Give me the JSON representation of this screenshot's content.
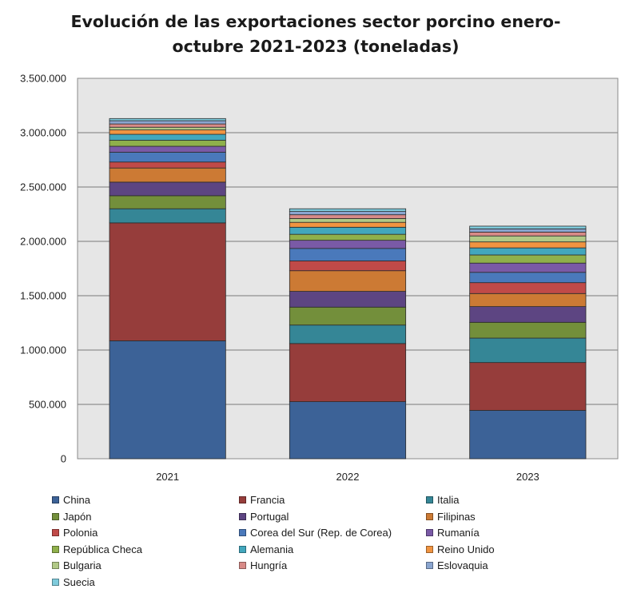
{
  "chart_data": {
    "type": "bar",
    "stacked": true,
    "title_lines": [
      "Evolución de las exportaciones sector porcino enero-",
      "octubre  2021-2023 (toneladas)"
    ],
    "categories": [
      "2021",
      "2022",
      "2023"
    ],
    "ylim": [
      0,
      3500000
    ],
    "yticks": [
      0,
      500000,
      1000000,
      1500000,
      2000000,
      2500000,
      3000000,
      3500000
    ],
    "ytick_labels": [
      "0",
      "500.000",
      "1.000.000",
      "1.500.000",
      "2.000.000",
      "2.500.000",
      "3.000.000",
      "3.500.000"
    ],
    "grid": true,
    "legend_position": "bottom",
    "series": [
      {
        "name": "China",
        "color": "#3c6297",
        "values": [
          1085000,
          525000,
          445000
        ]
      },
      {
        "name": "Francia",
        "color": "#963d3b",
        "values": [
          1085000,
          535000,
          440000
        ]
      },
      {
        "name": "Italia",
        "color": "#358696",
        "values": [
          130000,
          170000,
          225000
        ]
      },
      {
        "name": "Japón",
        "color": "#738f3b",
        "values": [
          120000,
          165000,
          145000
        ]
      },
      {
        "name": "Portugal",
        "color": "#5d4582",
        "values": [
          125000,
          145000,
          145000
        ]
      },
      {
        "name": "Filipinas",
        "color": "#cc7a34",
        "values": [
          130000,
          190000,
          120000
        ]
      },
      {
        "name": "Polonia",
        "color": "#c04a48",
        "values": [
          55000,
          90000,
          100000
        ]
      },
      {
        "name": "Corea del Sur (Rep. de Corea)",
        "color": "#4a79bb",
        "values": [
          90000,
          115000,
          95000
        ]
      },
      {
        "name": "Rumanía",
        "color": "#7a5aa6",
        "values": [
          55000,
          75000,
          85000
        ]
      },
      {
        "name": "República Checa",
        "color": "#8fb04b",
        "values": [
          55000,
          55000,
          75000
        ]
      },
      {
        "name": "Alemania",
        "color": "#42a7bd",
        "values": [
          55000,
          65000,
          65000
        ]
      },
      {
        "name": "Reino Unido",
        "color": "#f09441",
        "values": [
          40000,
          45000,
          55000
        ]
      },
      {
        "name": "Bulgaria",
        "color": "#b1c986",
        "values": [
          25000,
          35000,
          55000
        ]
      },
      {
        "name": "Hungría",
        "color": "#d88a87",
        "values": [
          30000,
          35000,
          35000
        ]
      },
      {
        "name": "Eslovaquia",
        "color": "#8aa5cf",
        "values": [
          30000,
          30000,
          30000
        ]
      },
      {
        "name": "Suecia",
        "color": "#7fcbdc",
        "values": [
          20000,
          25000,
          25000
        ]
      }
    ]
  }
}
